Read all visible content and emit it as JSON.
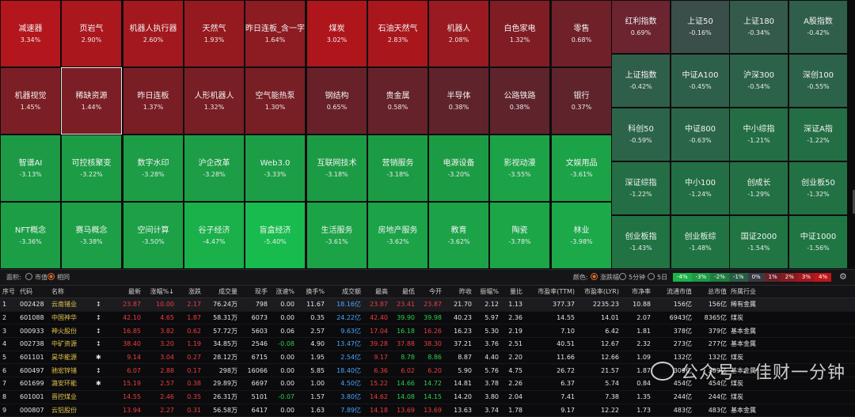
{
  "heatmap": {
    "tiles": [
      {
        "name": "减速器",
        "pct": "3.34%",
        "color": "#b3161c"
      },
      {
        "name": "页岩气",
        "pct": "2.90%",
        "color": "#aa171d"
      },
      {
        "name": "机器人执行器",
        "pct": "2.60%",
        "color": "#a3181e"
      },
      {
        "name": "天然气",
        "pct": "1.93%",
        "color": "#951a20"
      },
      {
        "name": "昨日连板_含一字",
        "pct": "1.64%",
        "color": "#8c1b22"
      },
      {
        "name": "煤炭",
        "pct": "3.02%",
        "color": "#ae161c"
      },
      {
        "name": "石油天然气",
        "pct": "2.83%",
        "color": "#a9171d"
      },
      {
        "name": "机器人",
        "pct": "2.08%",
        "color": "#991a20"
      },
      {
        "name": "白色家电",
        "pct": "1.32%",
        "color": "#801d24"
      },
      {
        "name": "零售",
        "pct": "0.68%",
        "color": "#6f2029"
      },
      {
        "name": "机器视觉",
        "pct": "1.45%",
        "color": "#7c1e25"
      },
      {
        "name": "稀缺资源",
        "pct": "1.44%",
        "color": "#7c1e25"
      },
      {
        "name": "昨日连板",
        "pct": "1.37%",
        "color": "#7a1e25"
      },
      {
        "name": "人形机器人",
        "pct": "1.32%",
        "color": "#781e25"
      },
      {
        "name": "空气能热泵",
        "pct": "1.30%",
        "color": "#781e25"
      },
      {
        "name": "钢结构",
        "pct": "0.65%",
        "color": "#682129"
      },
      {
        "name": "贵金属",
        "pct": "0.58%",
        "color": "#66222a"
      },
      {
        "name": "半导体",
        "pct": "0.38%",
        "color": "#5f232c"
      },
      {
        "name": "公路铁路",
        "pct": "0.38%",
        "color": "#5f232c"
      },
      {
        "name": "银行",
        "pct": "0.37%",
        "color": "#5f232c"
      },
      {
        "name": "智谱AI",
        "pct": "-3.13%",
        "color": "#1c9a45"
      },
      {
        "name": "可控核聚变",
        "pct": "-3.22%",
        "color": "#1c9c45"
      },
      {
        "name": "数字水印",
        "pct": "-3.28%",
        "color": "#1c9d46"
      },
      {
        "name": "沪企改革",
        "pct": "-3.28%",
        "color": "#1c9d46"
      },
      {
        "name": "Web3.0",
        "pct": "-3.33%",
        "color": "#1c9e46"
      },
      {
        "name": "互联网技术",
        "pct": "-3.18%",
        "color": "#1c9b45"
      },
      {
        "name": "营销服务",
        "pct": "-3.18%",
        "color": "#1c9b45"
      },
      {
        "name": "电源设备",
        "pct": "-3.20%",
        "color": "#1c9b45"
      },
      {
        "name": "影视动漫",
        "pct": "-3.55%",
        "color": "#1ca247"
      },
      {
        "name": "文娱用品",
        "pct": "-3.61%",
        "color": "#1ca347"
      },
      {
        "name": "NFT概念",
        "pct": "-3.36%",
        "color": "#1c9e46"
      },
      {
        "name": "赛马概念",
        "pct": "-3.38%",
        "color": "#1c9f46"
      },
      {
        "name": "空间计算",
        "pct": "-3.50%",
        "color": "#1ca147"
      },
      {
        "name": "谷子经济",
        "pct": "-4.47%",
        "color": "#1ab04a"
      },
      {
        "name": "盲盒经济",
        "pct": "-5.40%",
        "color": "#18bb4d"
      },
      {
        "name": "生活服务",
        "pct": "-3.61%",
        "color": "#1ca347"
      },
      {
        "name": "房地产服务",
        "pct": "-3.62%",
        "color": "#1ca347"
      },
      {
        "name": "教育",
        "pct": "-3.62%",
        "color": "#1ca347"
      },
      {
        "name": "陶瓷",
        "pct": "-3.78%",
        "color": "#1ca648"
      },
      {
        "name": "林业",
        "pct": "-3.98%",
        "color": "#1ba949"
      }
    ],
    "indices": [
      {
        "name": "红利指数",
        "pct": "0.69%",
        "color": "#6b2430"
      },
      {
        "name": "上证50",
        "pct": "-0.16%",
        "color": "#3a4e4a"
      },
      {
        "name": "上证180",
        "pct": "-0.34%",
        "color": "#335a4a"
      },
      {
        "name": "A股指数",
        "pct": "-0.42%",
        "color": "#2f5e4a"
      },
      {
        "name": "上证指数",
        "pct": "-0.42%",
        "color": "#2f5e4a"
      },
      {
        "name": "中证A100",
        "pct": "-0.45%",
        "color": "#2e5f4a"
      },
      {
        "name": "沪深300",
        "pct": "-0.54%",
        "color": "#2c6249"
      },
      {
        "name": "深创100",
        "pct": "-0.55%",
        "color": "#2c6249"
      },
      {
        "name": "科创50",
        "pct": "-0.59%",
        "color": "#2b6449"
      },
      {
        "name": "中证800",
        "pct": "-0.63%",
        "color": "#2a6548"
      },
      {
        "name": "中小综指",
        "pct": "-1.21%",
        "color": "#246e45"
      },
      {
        "name": "深证A指",
        "pct": "-1.22%",
        "color": "#246e45"
      },
      {
        "name": "深证综指",
        "pct": "-1.22%",
        "color": "#246e45"
      },
      {
        "name": "中小100",
        "pct": "-1.24%",
        "color": "#236f45"
      },
      {
        "name": "创成长",
        "pct": "-1.29%",
        "color": "#237044"
      },
      {
        "name": "创业板50",
        "pct": "-1.32%",
        "color": "#227144"
      },
      {
        "name": "创业板指",
        "pct": "-1.43%",
        "color": "#217344"
      },
      {
        "name": "创业板综",
        "pct": "-1.48%",
        "color": "#207443"
      },
      {
        "name": "国证2000",
        "pct": "-1.54%",
        "color": "#207543"
      },
      {
        "name": "中证1000",
        "pct": "-1.56%",
        "color": "#1f7643"
      }
    ]
  },
  "controls": {
    "area_label": "面积:",
    "area_opt1": "市值",
    "area_opt2": "相同",
    "color_label": "颜色:",
    "color_opt1": "涨跌幅",
    "color_opt2": "5分钟",
    "color_opt3": "5日",
    "legend": [
      {
        "t": "-4%",
        "c": "#1db24a"
      },
      {
        "t": "-3%",
        "c": "#1c9a45"
      },
      {
        "t": "-2%",
        "c": "#1f7d40"
      },
      {
        "t": "-1%",
        "c": "#2a5d43"
      },
      {
        "t": "0%",
        "c": "#3a3a44"
      },
      {
        "t": "1%",
        "c": "#6b2028"
      },
      {
        "t": "2%",
        "c": "#861c22"
      },
      {
        "t": "3%",
        "c": "#a3181e"
      },
      {
        "t": "4%",
        "c": "#c0161b"
      }
    ]
  },
  "table": {
    "headers": [
      "序号",
      "代码",
      "名称",
      "",
      "最新",
      "涨幅%↓",
      "涨跌",
      "成交量",
      "现手",
      "涨速%",
      "换手%",
      "成交额",
      "最高",
      "最低",
      "今开",
      "昨收",
      "振幅%",
      "量比",
      "市盈率(TTM)",
      "市盈率(LYR)",
      "市净率",
      "流通市值",
      "总市值",
      "所属行业"
    ],
    "rows": [
      {
        "no": "1",
        "code": "002428",
        "name": "云南锗业",
        "flag": "↕",
        "price": "23.87",
        "chg_pct": "10.00",
        "chg": "2.17",
        "vol": "76.24万",
        "hand": "798",
        "speed": "0.00",
        "turn": "11.67",
        "amt": "18.16亿",
        "high": "23.87",
        "low": "23.41",
        "open": "23.87",
        "prev": "21.70",
        "amp": "2.12",
        "qr": "1.13",
        "pe_ttm": "377.37",
        "pe_lyr": "2235.23",
        "pb": "10.88",
        "float_mv": "156亿",
        "total_mv": "156亿",
        "industry": "稀有金属"
      },
      {
        "no": "2",
        "code": "601088",
        "name": "中国神华",
        "flag": "↕",
        "price": "42.10",
        "chg_pct": "4.65",
        "chg": "1.87",
        "vol": "58.31万",
        "hand": "6073",
        "speed": "0.00",
        "turn": "0.35",
        "amt": "24.22亿",
        "high": "42.40",
        "low": "39.90",
        "open": "39.98",
        "prev": "40.23",
        "amp": "5.97",
        "qr": "2.36",
        "pe_ttm": "14.55",
        "pe_lyr": "14.01",
        "pb": "2.07",
        "float_mv": "6943亿",
        "total_mv": "8365亿",
        "industry": "煤炭"
      },
      {
        "no": "3",
        "code": "000933",
        "name": "神火股份",
        "flag": "↕",
        "price": "16.85",
        "chg_pct": "3.82",
        "chg": "0.62",
        "vol": "57.72万",
        "hand": "5603",
        "speed": "0.06",
        "turn": "2.57",
        "amt": "9.63亿",
        "high": "17.04",
        "low": "16.18",
        "open": "16.26",
        "prev": "16.23",
        "amp": "5.30",
        "qr": "2.19",
        "pe_ttm": "7.10",
        "pe_lyr": "6.42",
        "pb": "1.81",
        "float_mv": "378亿",
        "total_mv": "379亿",
        "industry": "基本金属"
      },
      {
        "no": "4",
        "code": "002738",
        "name": "中矿资源",
        "flag": "↕",
        "price": "38.40",
        "chg_pct": "3.20",
        "chg": "1.19",
        "vol": "34.85万",
        "hand": "2546",
        "speed": "-0.08",
        "turn": "4.90",
        "amt": "13.47亿",
        "high": "39.28",
        "low": "37.88",
        "open": "38.30",
        "prev": "37.21",
        "amp": "3.76",
        "qr": "2.51",
        "pe_ttm": "40.51",
        "pe_lyr": "12.67",
        "pb": "2.32",
        "float_mv": "273亿",
        "total_mv": "277亿",
        "industry": "基本金属"
      },
      {
        "no": "5",
        "code": "601101",
        "name": "昊华能源",
        "flag": "✱",
        "price": "9.14",
        "chg_pct": "3.04",
        "chg": "0.27",
        "vol": "28.12万",
        "hand": "6715",
        "speed": "0.00",
        "turn": "1.95",
        "amt": "2.54亿",
        "high": "9.17",
        "low": "8.78",
        "open": "8.86",
        "prev": "8.87",
        "amp": "4.40",
        "qr": "2.20",
        "pe_ttm": "11.66",
        "pe_lyr": "12.66",
        "pb": "1.09",
        "float_mv": "132亿",
        "total_mv": "132亿",
        "industry": "煤炭"
      },
      {
        "no": "6",
        "code": "600497",
        "name": "驰宏锌锗",
        "flag": "↕",
        "price": "6.07",
        "chg_pct": "2.88",
        "chg": "0.17",
        "vol": "298万",
        "hand": "16066",
        "speed": "0.00",
        "turn": "5.85",
        "amt": "18.40亿",
        "high": "6.36",
        "low": "6.02",
        "open": "6.20",
        "prev": "5.90",
        "amp": "5.76",
        "qr": "4.75",
        "pe_ttm": "26.72",
        "pe_lyr": "21.57",
        "pb": "1.87",
        "float_mv": "309亿",
        "total_mv": "309亿",
        "industry": "基本金属"
      },
      {
        "no": "7",
        "code": "601699",
        "name": "潞安环能",
        "flag": "✱",
        "price": "15.19",
        "chg_pct": "2.57",
        "chg": "0.38",
        "vol": "29.89万",
        "hand": "6697",
        "speed": "0.00",
        "turn": "1.00",
        "amt": "4.50亿",
        "high": "15.22",
        "low": "14.66",
        "open": "14.72",
        "prev": "14.81",
        "amp": "3.78",
        "qr": "2.26",
        "pe_ttm": "6.37",
        "pe_lyr": "5.74",
        "pb": "0.84",
        "float_mv": "454亿",
        "total_mv": "454亿",
        "industry": "煤炭"
      },
      {
        "no": "8",
        "code": "601001",
        "name": "晋控煤业",
        "flag": "",
        "price": "14.55",
        "chg_pct": "2.46",
        "chg": "0.35",
        "vol": "26.31万",
        "hand": "5101",
        "speed": "-0.07",
        "turn": "1.57",
        "amt": "3.80亿",
        "high": "14.62",
        "low": "14.08",
        "open": "14.15",
        "prev": "14.20",
        "amp": "3.80",
        "qr": "2.04",
        "pe_ttm": "7.41",
        "pe_lyr": "7.38",
        "pb": "1.35",
        "float_mv": "244亿",
        "total_mv": "244亿",
        "industry": "煤炭"
      },
      {
        "no": "9",
        "code": "000807",
        "name": "云铝股份",
        "flag": "",
        "price": "13.94",
        "chg_pct": "2.27",
        "chg": "0.31",
        "vol": "56.58万",
        "hand": "6417",
        "speed": "0.00",
        "turn": "1.63",
        "amt": "7.89亿",
        "high": "14.18",
        "low": "13.69",
        "open": "13.69",
        "prev": "13.63",
        "amp": "3.74",
        "qr": "1.78",
        "pe_ttm": "9.17",
        "pe_lyr": "12.22",
        "pb": "1.73",
        "float_mv": "483亿",
        "total_mv": "483亿",
        "industry": "基本金属"
      }
    ]
  },
  "watermark": "公众号 · 佳财一分钟"
}
